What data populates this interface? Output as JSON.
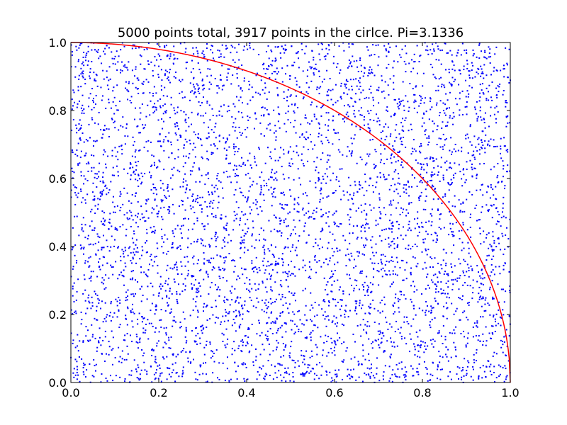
{
  "chart_data": {
    "type": "scatter",
    "title": "5000 points total, 3917 points in the cirlce. Pi=3.1336",
    "xlabel": "",
    "ylabel": "",
    "xlim": [
      0.0,
      1.0
    ],
    "ylim": [
      0.0,
      1.0
    ],
    "x_ticks": [
      "0.0",
      "0.2",
      "0.4",
      "0.6",
      "0.8",
      "1.0"
    ],
    "y_ticks": [
      "0.0",
      "0.2",
      "0.4",
      "0.6",
      "0.8",
      "1.0"
    ],
    "grid": false,
    "series": [
      {
        "kind": "points",
        "count": 5000,
        "distribution": "uniform random in [0,1] x [0,1]",
        "color": "#0000ff",
        "marker": "dot"
      },
      {
        "kind": "curve",
        "equation": "x^2 + y^2 = 1",
        "x_range": [
          0.0,
          1.0
        ],
        "color": "#ff0000"
      }
    ],
    "points_total": 5000,
    "points_in_circle": 3917,
    "pi_estimate": 3.1336
  }
}
